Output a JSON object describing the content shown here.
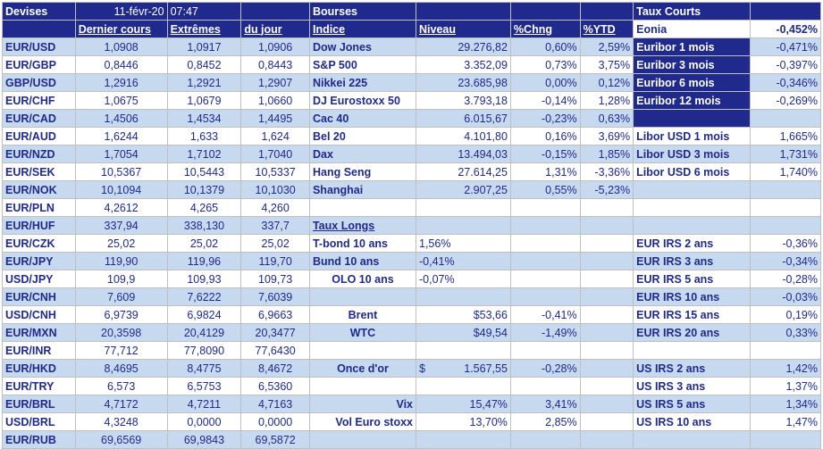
{
  "header": {
    "devises": "Devises",
    "date": "11-févr-20",
    "time": "07:47",
    "bourses": "Bourses",
    "taux_courts": "Taux Courts"
  },
  "columns": {
    "dernier_cours": "Dernier cours",
    "extremes": "Extrêmes",
    "du_jour": "du jour",
    "indice": "Indice",
    "niveau": "Niveau",
    "chng": "%Chng",
    "ytd": "%YTD",
    "eonia": "Eonia",
    "eonia_value": "-0,452%"
  },
  "rows": [
    {
      "pair": "EUR/USD",
      "last": "1,0908",
      "high": "1,0917",
      "low": "1,0906",
      "idx": "Dow Jones",
      "lvl": "29.276,82",
      "chg": "0,60%",
      "ytd": "2,59%",
      "rate": "Euribor 1 mois",
      "rv": "-0,471%"
    },
    {
      "pair": "EUR/GBP",
      "last": "0,8446",
      "high": "0,8452",
      "low": "0,8443",
      "idx": "S&P 500",
      "lvl": "3.352,09",
      "chg": "0,73%",
      "ytd": "3,75%",
      "rate": "Euribor 3 mois",
      "rv": "-0,397%"
    },
    {
      "pair": "GBP/USD",
      "last": "1,2916",
      "high": "1,2921",
      "low": "1,2907",
      "idx": "Nikkei 225",
      "lvl": "23.685,98",
      "chg": "0,00%",
      "ytd": "0,12%",
      "rate": "Euribor 6 mois",
      "rv": "-0,346%"
    },
    {
      "pair": "EUR/CHF",
      "last": "1,0675",
      "high": "1,0679",
      "low": "1,0660",
      "idx": "DJ Eurostoxx 50",
      "lvl": "3.793,18",
      "chg": "-0,14%",
      "ytd": "1,28%",
      "rate": "Euribor 12 mois",
      "rv": "-0,269%"
    },
    {
      "pair": "EUR/CAD",
      "last": "1,4506",
      "high": "1,4534",
      "low": "1,4495",
      "idx": "Cac 40",
      "lvl": "6.015,67",
      "chg": "-0,23%",
      "ytd": "0,63%",
      "rate": "",
      "rv": ""
    },
    {
      "pair": "EUR/AUD",
      "last": "1,6244",
      "high": "1,633",
      "low": "1,624",
      "idx": "Bel 20",
      "lvl": "4.101,80",
      "chg": "0,16%",
      "ytd": "3,69%",
      "rate": "Libor USD 1 mois",
      "rv": "1,665%"
    },
    {
      "pair": "EUR/NZD",
      "last": "1,7054",
      "high": "1,7102",
      "low": "1,7040",
      "idx": "Dax",
      "lvl": "13.494,03",
      "chg": "-0,15%",
      "ytd": "1,85%",
      "rate": "Libor USD 3 mois",
      "rv": "1,731%"
    },
    {
      "pair": "EUR/SEK",
      "last": "10,5367",
      "high": "10,5443",
      "low": "10,5337",
      "idx": "Hang Seng",
      "lvl": "27.614,25",
      "chg": "1,31%",
      "ytd": "-3,36%",
      "rate": "Libor USD 6 mois",
      "rv": "1,740%"
    },
    {
      "pair": "EUR/NOK",
      "last": "10,1094",
      "high": "10,1379",
      "low": "10,1030",
      "idx": "Shanghai",
      "lvl": "2.907,25",
      "chg": "0,55%",
      "ytd": "-5,23%",
      "rate": "",
      "rv": ""
    },
    {
      "pair": "EUR/PLN",
      "last": "4,2612",
      "high": "4,265",
      "low": "4,260",
      "idx": "",
      "lvl": "",
      "chg": "",
      "ytd": "",
      "rate": "",
      "rv": ""
    },
    {
      "pair": "EUR/HUF",
      "last": "337,94",
      "high": "338,130",
      "low": "337,7",
      "idx": "Taux Longs",
      "lvl": "",
      "chg": "",
      "ytd": "",
      "rate": "",
      "rv": ""
    },
    {
      "pair": "EUR/CZK",
      "last": "25,02",
      "high": "25,02",
      "low": "25,02",
      "idx": "T-bond 10 ans",
      "lvl": "1,56%",
      "chg": "",
      "ytd": "",
      "rate": "EUR IRS 2 ans",
      "rv": "-0,36%"
    },
    {
      "pair": "EUR/JPY",
      "last": "119,90",
      "high": "119,96",
      "low": "119,70",
      "idx": "Bund 10 ans",
      "lvl": "-0,41%",
      "chg": "",
      "ytd": "",
      "rate": "EUR IRS 3 ans",
      "rv": "-0,34%"
    },
    {
      "pair": "USD/JPY",
      "last": "109,9",
      "high": "109,93",
      "low": "109,73",
      "idx": "OLO 10 ans",
      "lvl": "-0,07%",
      "chg": "",
      "ytd": "",
      "rate": "EUR IRS 5 ans",
      "rv": "-0,28%"
    },
    {
      "pair": "EUR/CNH",
      "last": "7,609",
      "high": "7,6222",
      "low": "7,6039",
      "idx": "",
      "lvl": "",
      "chg": "",
      "ytd": "",
      "rate": "EUR IRS 10 ans",
      "rv": "-0,03%"
    },
    {
      "pair": "USD/CNH",
      "last": "6,9739",
      "high": "6,9824",
      "low": "6,9663",
      "idx": "Brent",
      "lvl": "$53,66",
      "chg": "-0,41%",
      "ytd": "",
      "rate": "EUR IRS 15 ans",
      "rv": "0,19%"
    },
    {
      "pair": "EUR/MXN",
      "last": "20,3598",
      "high": "20,4129",
      "low": "20,3477",
      "idx": "WTC",
      "lvl": "$49,54",
      "chg": "-1,49%",
      "ytd": "",
      "rate": "EUR IRS 20 ans",
      "rv": "0,33%"
    },
    {
      "pair": "EUR/INR",
      "last": "77,712",
      "high": "77,8090",
      "low": "77,6430",
      "idx": "",
      "lvl": "",
      "chg": "",
      "ytd": "",
      "rate": "",
      "rv": ""
    },
    {
      "pair": "EUR/HKD",
      "last": "8,4695",
      "high": "8,4775",
      "low": "8,4672",
      "idx": "Once d'or",
      "lvl_cur": "$",
      "lvl": "1.567,55",
      "chg": "-0,28%",
      "ytd": "",
      "rate": "US IRS 2 ans",
      "rv": "1,42%"
    },
    {
      "pair": "EUR/TRY",
      "last": "6,573",
      "high": "6,5753",
      "low": "6,5360",
      "idx": "",
      "lvl": "",
      "chg": "",
      "ytd": "",
      "rate": "US IRS 3 ans",
      "rv": "1,37%"
    },
    {
      "pair": "EUR/BRL",
      "last": "4,7172",
      "high": "4,7211",
      "low": "4,7163",
      "idx": "Vix",
      "lvl": "15,47%",
      "chg": "3,41%",
      "ytd": "",
      "rate": "US IRS 5 ans",
      "rv": "1,34%"
    },
    {
      "pair": "USD/BRL",
      "last": "4,3248",
      "high": "0,0000",
      "low": "0,0000",
      "idx": "Vol Euro stoxx",
      "lvl": "13,70%",
      "chg": "2,85%",
      "ytd": "",
      "rate": "US IRS 10 ans",
      "rv": "1,47%"
    },
    {
      "pair": "EUR/RUB",
      "last": "69,6569",
      "high": "69,9843",
      "low": "69,5872",
      "idx": "",
      "lvl": "",
      "chg": "",
      "ytd": "",
      "rate": "",
      "rv": ""
    }
  ]
}
